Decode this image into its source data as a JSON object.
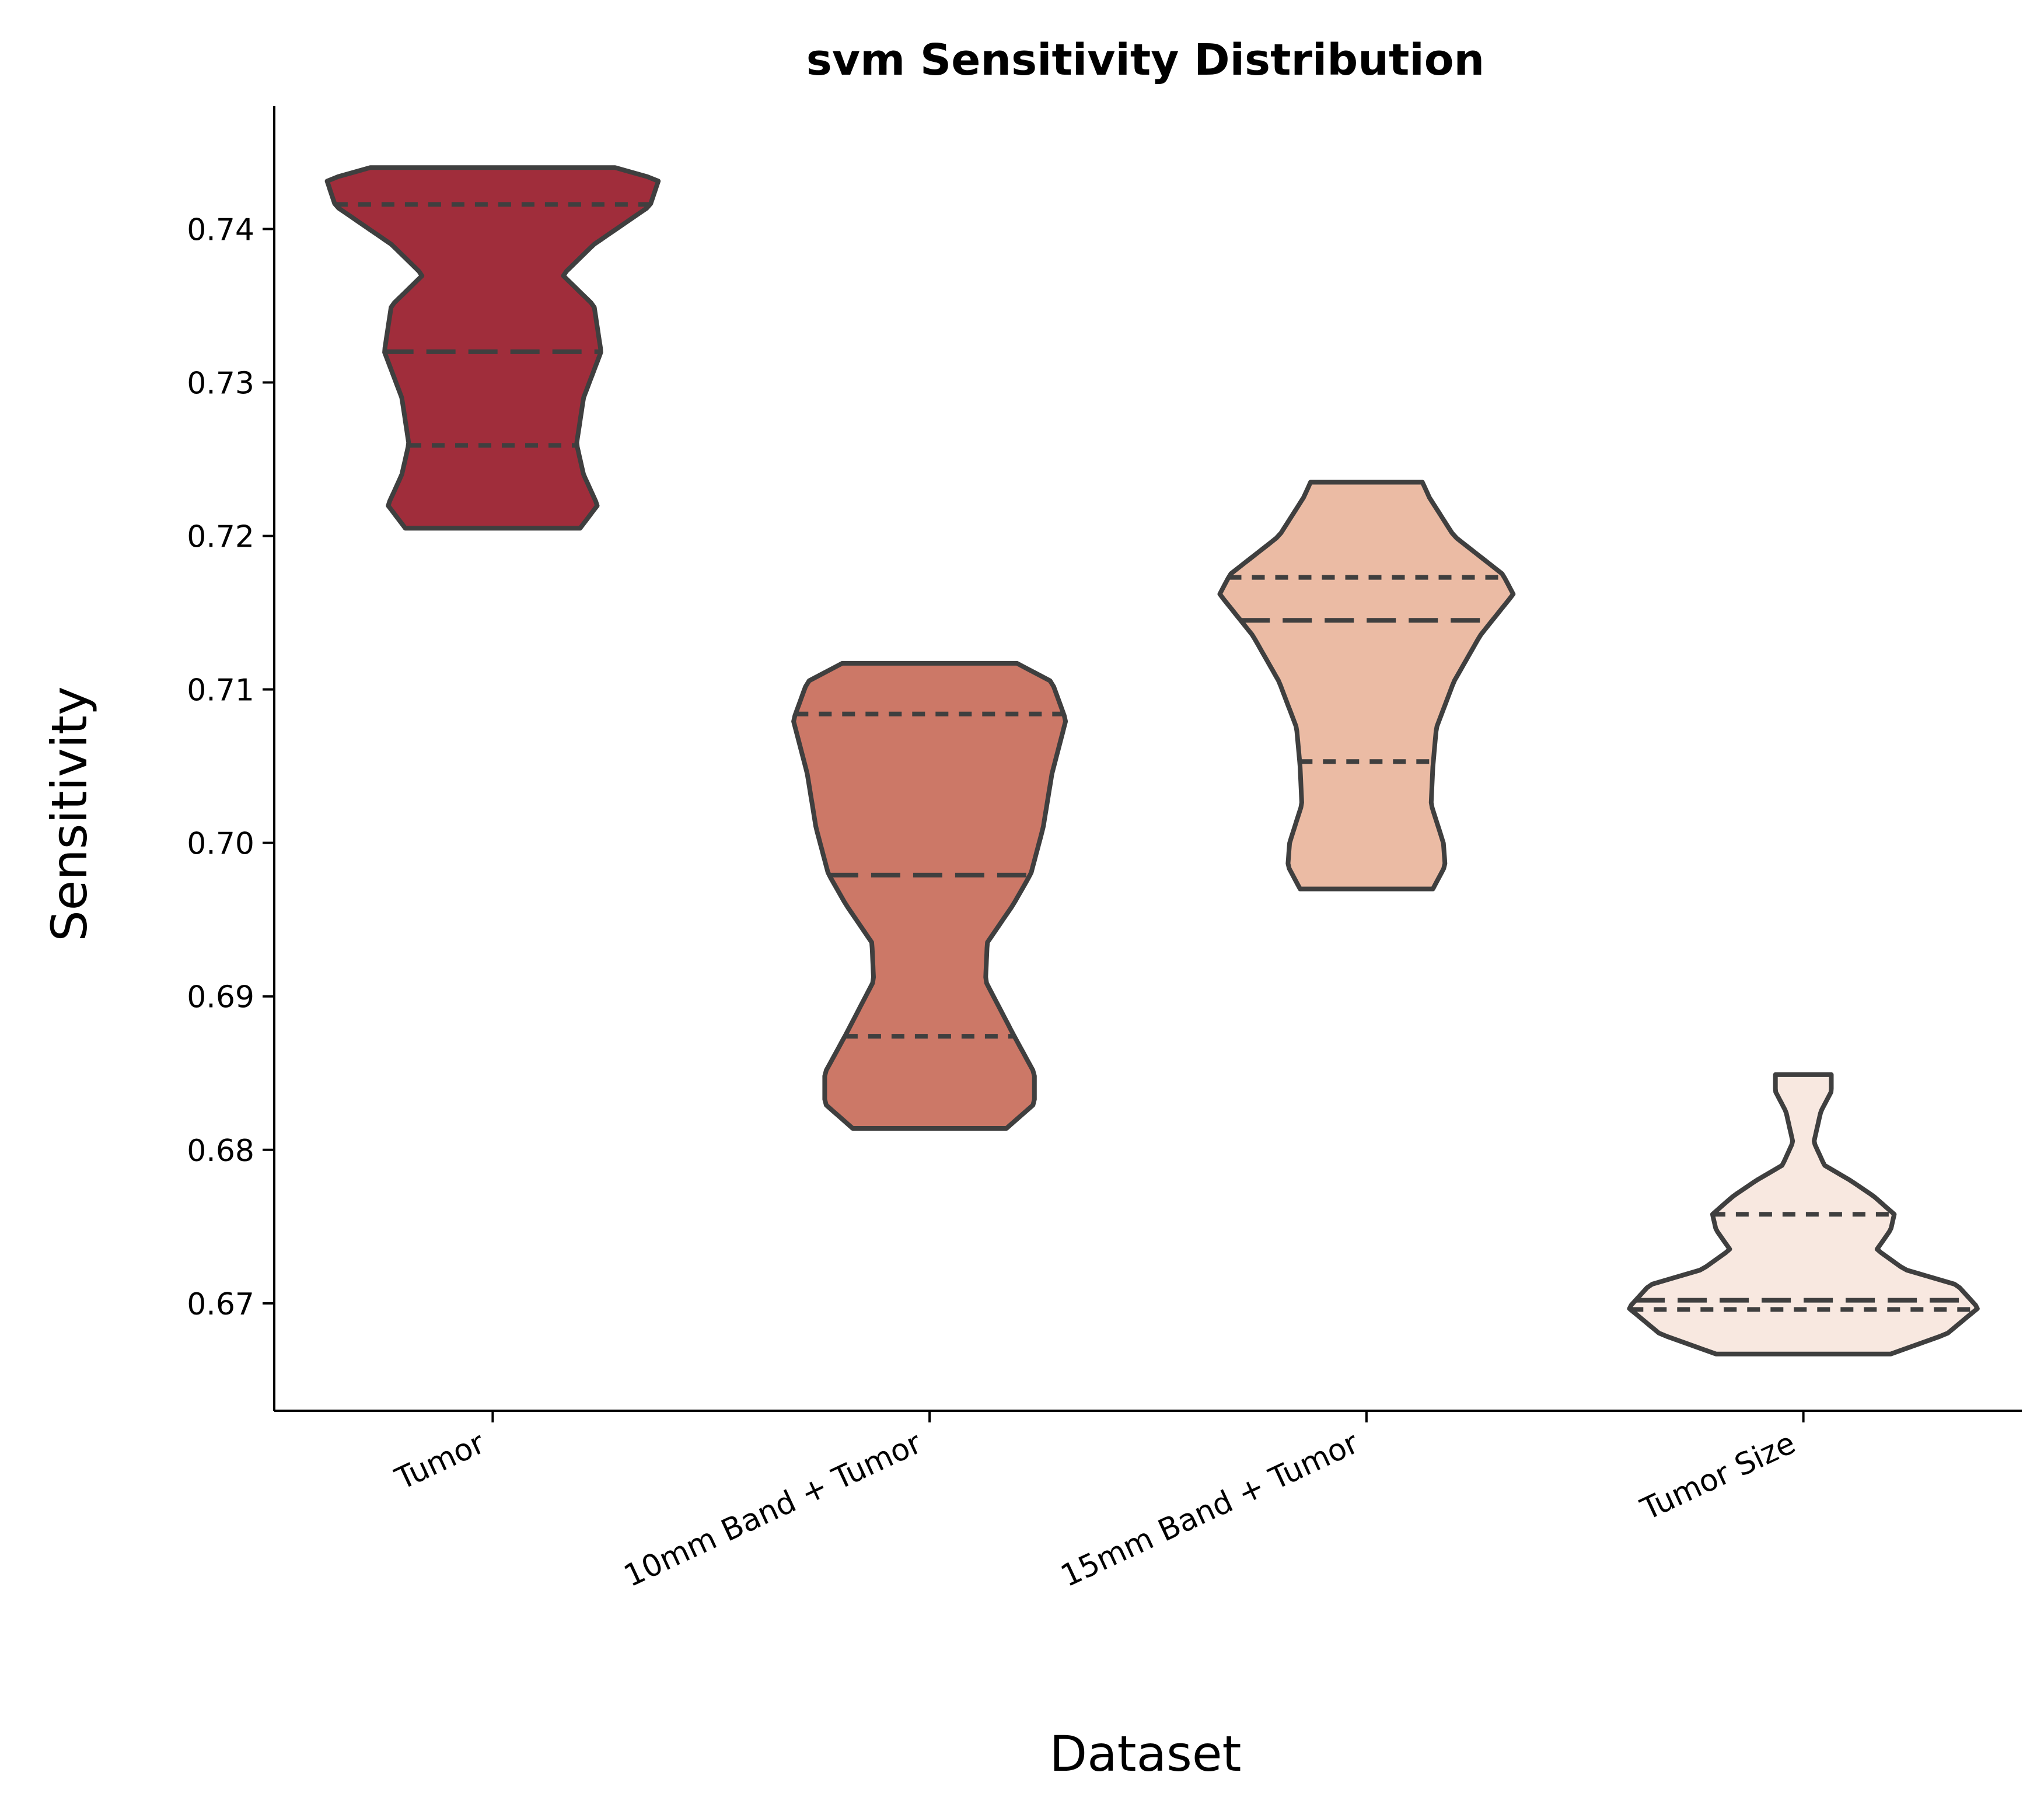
{
  "chart_data": {
    "type": "violin",
    "title": "svm Sensitivity Distribution",
    "xlabel": "Dataset",
    "ylabel": "Sensitivity",
    "ylim": [
      0.663,
      0.748
    ],
    "yticks": [
      "0.67",
      "0.68",
      "0.69",
      "0.70",
      "0.71",
      "0.72",
      "0.73",
      "0.74"
    ],
    "grid": false,
    "legend": "none",
    "categories": [
      "Tumor",
      "10mm Band + Tumor",
      "15mm Band + Tumor",
      "Tumor Size"
    ],
    "colors": [
      "#a02d3b",
      "#cc7867",
      "#ebbba4",
      "#f8e8e0"
    ],
    "violins": [
      {
        "name": "Tumor",
        "min": 0.7205,
        "max": 0.744,
        "q1": 0.7259,
        "median": 0.732,
        "q3": 0.7416,
        "profile": [
          [
            0.7205,
            0.5
          ],
          [
            0.722,
            0.6
          ],
          [
            0.724,
            0.52
          ],
          [
            0.726,
            0.48
          ],
          [
            0.729,
            0.52
          ],
          [
            0.732,
            0.62
          ],
          [
            0.735,
            0.58
          ],
          [
            0.737,
            0.4
          ],
          [
            0.739,
            0.58
          ],
          [
            0.7415,
            0.9
          ],
          [
            0.7432,
            0.95
          ],
          [
            0.744,
            0.7
          ]
        ]
      },
      {
        "name": "10mm Band + Tumor",
        "min": 0.6814,
        "max": 0.7117,
        "q1": 0.6874,
        "median": 0.6979,
        "q3": 0.7084,
        "profile": [
          [
            0.6814,
            0.44
          ],
          [
            0.683,
            0.6
          ],
          [
            0.685,
            0.6
          ],
          [
            0.6875,
            0.48
          ],
          [
            0.691,
            0.32
          ],
          [
            0.6935,
            0.33
          ],
          [
            0.696,
            0.48
          ],
          [
            0.698,
            0.58
          ],
          [
            0.701,
            0.65
          ],
          [
            0.7045,
            0.7
          ],
          [
            0.708,
            0.78
          ],
          [
            0.7105,
            0.7
          ],
          [
            0.7117,
            0.5
          ]
        ]
      },
      {
        "name": "15mm Band + Tumor",
        "min": 0.697,
        "max": 0.7235,
        "q1": 0.7053,
        "median": 0.7145,
        "q3": 0.7173,
        "profile": [
          [
            0.697,
            0.38
          ],
          [
            0.6985,
            0.45
          ],
          [
            0.7,
            0.44
          ],
          [
            0.7025,
            0.37
          ],
          [
            0.705,
            0.38
          ],
          [
            0.7075,
            0.4
          ],
          [
            0.7105,
            0.5
          ],
          [
            0.7135,
            0.65
          ],
          [
            0.7145,
            0.72
          ],
          [
            0.7162,
            0.84
          ],
          [
            0.7175,
            0.78
          ],
          [
            0.72,
            0.5
          ],
          [
            0.7225,
            0.36
          ],
          [
            0.7235,
            0.32
          ]
        ]
      },
      {
        "name": "Tumor Size",
        "min": 0.6667,
        "max": 0.6849,
        "q1": 0.6696,
        "median": 0.6702,
        "q3": 0.6758,
        "profile": [
          [
            0.6667,
            0.5
          ],
          [
            0.668,
            0.82
          ],
          [
            0.6697,
            1.0
          ],
          [
            0.6712,
            0.88
          ],
          [
            0.6722,
            0.58
          ],
          [
            0.6735,
            0.42
          ],
          [
            0.6748,
            0.5
          ],
          [
            0.6758,
            0.52
          ],
          [
            0.677,
            0.4
          ],
          [
            0.678,
            0.27
          ],
          [
            0.679,
            0.12
          ],
          [
            0.6805,
            0.06
          ],
          [
            0.6825,
            0.1
          ],
          [
            0.6838,
            0.16
          ],
          [
            0.6849,
            0.16
          ]
        ]
      }
    ]
  }
}
